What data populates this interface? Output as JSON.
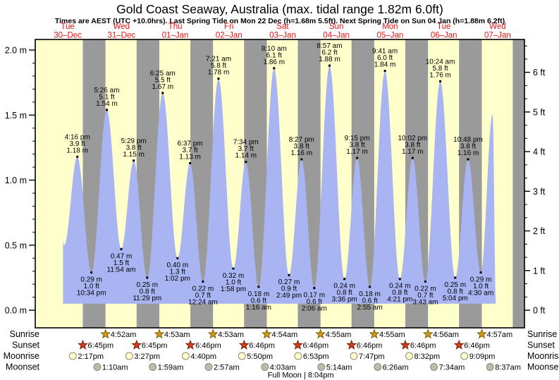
{
  "title": "Gold Coast Seaway, Australia (max. tidal range 1.82m 6.0ft)",
  "subtitle": "Times are AEST (UTC +10.0hrs). Last Spring Tide on Mon 22 Dec (h=1.68m 5.5ft). Next Spring Tide on Sun 04 Jan (h=1.88m 6.2ft)",
  "days": [
    {
      "name": "Tue",
      "date": "30–Dec"
    },
    {
      "name": "Wed",
      "date": "31–Dec"
    },
    {
      "name": "Thu",
      "date": "01–Jan"
    },
    {
      "name": "Fri",
      "date": "02–Jan"
    },
    {
      "name": "Sat",
      "date": "03–Jan"
    },
    {
      "name": "Sun",
      "date": "04–Jan"
    },
    {
      "name": "Mon",
      "date": "05–Jan"
    },
    {
      "name": "Tue",
      "date": "06–Jan"
    },
    {
      "name": "Wed",
      "date": "07–Jan"
    }
  ],
  "axes": {
    "left_ticks": [
      {
        "m": 0.0,
        "label": "0.0 m"
      },
      {
        "m": 0.5,
        "label": "0.5 m"
      },
      {
        "m": 1.0,
        "label": "1.0 m"
      },
      {
        "m": 1.5,
        "label": "1.5 m"
      },
      {
        "m": 2.0,
        "label": "2.0 m"
      }
    ],
    "right_ticks": [
      {
        "ft": 0,
        "label": "0 ft"
      },
      {
        "ft": 1,
        "label": "1 ft"
      },
      {
        "ft": 2,
        "label": "2 ft"
      },
      {
        "ft": 3,
        "label": "3 ft"
      },
      {
        "ft": 4,
        "label": "4 ft"
      },
      {
        "ft": 5,
        "label": "5 ft"
      },
      {
        "ft": 6,
        "label": "6 ft"
      }
    ]
  },
  "chart_data": {
    "type": "area",
    "title": "Tide height, Gold Coast Seaway",
    "x_unit": "hours since Tue 30-Dec 00:00 AEST",
    "y_unit": "m",
    "x_range": [
      0,
      216
    ],
    "ylim": [
      -0.12,
      2.08
    ],
    "grid": false,
    "night_bands": [
      [
        18.75,
        28.87
      ],
      [
        42.75,
        52.88
      ],
      [
        66.77,
        76.88
      ],
      [
        90.77,
        100.9
      ],
      [
        114.77,
        124.92
      ],
      [
        138.77,
        148.92
      ],
      [
        162.77,
        172.93
      ],
      [
        186.77,
        196.95
      ],
      [
        210.77,
        216
      ]
    ],
    "tide_points": [
      {
        "t": 9.9,
        "h": 0.53
      },
      {
        "t": 10.4,
        "h": 0.5
      },
      {
        "t": 16.27,
        "h": 1.18,
        "kind": "high",
        "time": "4:16 pm",
        "ft": "3.9 ft",
        "m": "1.18 m"
      },
      {
        "t": 22.57,
        "h": 0.29,
        "kind": "low",
        "time": "10:34 pm",
        "ft": "1.0 ft",
        "m": "0.29 m"
      },
      {
        "t": 29.43,
        "h": 1.54,
        "kind": "high",
        "time": "5:26 am",
        "ft": "5.1 ft",
        "m": "1.54 m"
      },
      {
        "t": 35.9,
        "h": 0.47,
        "kind": "low",
        "time": "11:54 am",
        "ft": "1.5 ft",
        "m": "0.47 m"
      },
      {
        "t": 41.48,
        "h": 1.15,
        "kind": "high",
        "time": "5:29 pm",
        "ft": "3.8 ft",
        "m": "1.15 m"
      },
      {
        "t": 47.48,
        "h": 0.25,
        "kind": "low",
        "time": "11:29 pm",
        "ft": "0.8 ft",
        "m": "0.25 m"
      },
      {
        "t": 54.42,
        "h": 1.67,
        "kind": "high",
        "time": "6:25 am",
        "ft": "5.5 ft",
        "m": "1.67 m"
      },
      {
        "t": 61.03,
        "h": 0.4,
        "kind": "low",
        "time": "1:02 pm",
        "ft": "1.3 ft",
        "m": "0.40 m"
      },
      {
        "t": 66.62,
        "h": 1.13,
        "kind": "high",
        "time": "6:37 pm",
        "ft": "3.7 ft",
        "m": "1.13 m"
      },
      {
        "t": 72.4,
        "h": 0.22,
        "kind": "low",
        "time": "12:24 am",
        "ft": "0.7 ft",
        "m": "0.22 m"
      },
      {
        "t": 79.35,
        "h": 1.78,
        "kind": "high",
        "time": "7:21 am",
        "ft": "5.8 ft",
        "m": "1.78 m"
      },
      {
        "t": 85.97,
        "h": 0.32,
        "kind": "low",
        "time": "1:58 pm",
        "ft": "1.0 ft",
        "m": "0.32 m"
      },
      {
        "t": 91.57,
        "h": 1.14,
        "kind": "high",
        "time": "7:34 pm",
        "ft": "3.7 ft",
        "m": "1.14 m"
      },
      {
        "t": 97.27,
        "h": 0.18,
        "kind": "low",
        "time": "1:16 am",
        "ft": "0.6 ft",
        "m": "0.18 m"
      },
      {
        "t": 104.17,
        "h": 1.86,
        "kind": "high",
        "time": "8:10 am",
        "ft": "6.1 ft",
        "m": "1.86 m"
      },
      {
        "t": 110.82,
        "h": 0.27,
        "kind": "low",
        "time": "2:49 pm",
        "ft": "0.9 ft",
        "m": "0.27 m"
      },
      {
        "t": 116.45,
        "h": 1.16,
        "kind": "high",
        "time": "8:27 pm",
        "ft": "3.8 ft",
        "m": "1.16 m"
      },
      {
        "t": 122.1,
        "h": 0.17,
        "kind": "low",
        "time": "2:06 am",
        "ft": "0.6 ft",
        "m": "0.17 m"
      },
      {
        "t": 128.95,
        "h": 1.88,
        "kind": "high",
        "time": "8:57 am",
        "ft": "6.2 ft",
        "m": "1.88 m"
      },
      {
        "t": 135.6,
        "h": 0.24,
        "kind": "low",
        "time": "3:36 pm",
        "ft": "0.8 ft",
        "m": "0.24 m"
      },
      {
        "t": 141.25,
        "h": 1.17,
        "kind": "high",
        "time": "9:15 pm",
        "ft": "3.8 ft",
        "m": "1.17 m"
      },
      {
        "t": 146.92,
        "h": 0.18,
        "kind": "low",
        "time": "2:55 am",
        "ft": "0.6 ft",
        "m": "0.18 m"
      },
      {
        "t": 153.68,
        "h": 1.84,
        "kind": "high",
        "time": "9:41 am",
        "ft": "6.0 ft",
        "m": "1.84 m"
      },
      {
        "t": 160.35,
        "h": 0.24,
        "kind": "low",
        "time": "4:21 pm",
        "ft": "0.8 ft",
        "m": "0.24 m"
      },
      {
        "t": 166.03,
        "h": 1.17,
        "kind": "high",
        "time": "10:02 pm",
        "ft": "3.8 ft",
        "m": "1.17 m"
      },
      {
        "t": 171.72,
        "h": 0.22,
        "kind": "low",
        "time": "3:43 am",
        "ft": "0.7 ft",
        "m": "0.22 m"
      },
      {
        "t": 178.4,
        "h": 1.76,
        "kind": "high",
        "time": "10:24 am",
        "ft": "5.8 ft",
        "m": "1.76 m"
      },
      {
        "t": 185.07,
        "h": 0.25,
        "kind": "low",
        "time": "5:04 pm",
        "ft": "0.8 ft",
        "m": "0.25 m"
      },
      {
        "t": 190.8,
        "h": 1.16,
        "kind": "high",
        "time": "10:48 pm",
        "ft": "3.8 ft",
        "m": "1.16 m"
      },
      {
        "t": 196.5,
        "h": 0.29,
        "kind": "low",
        "time": "4:30 am",
        "ft": "1.0 ft",
        "m": "0.29 m"
      },
      {
        "t": 201.8,
        "h": 1.51
      },
      {
        "t": 203.2,
        "h": 0.05
      }
    ]
  },
  "astronomy": {
    "rows": [
      {
        "label": "Sunrise",
        "icon": "sunrise-star",
        "events": [
          {
            "time": "4:52am",
            "t": 28.87
          },
          {
            "time": "4:53am",
            "t": 52.88
          },
          {
            "time": "4:53am",
            "t": 76.88
          },
          {
            "time": "4:54am",
            "t": 100.9
          },
          {
            "time": "4:55am",
            "t": 124.92
          },
          {
            "time": "4:55am",
            "t": 148.92
          },
          {
            "time": "4:56am",
            "t": 172.93
          },
          {
            "time": "4:57am",
            "t": 196.95
          }
        ]
      },
      {
        "label": "Sunset",
        "icon": "sunset-star",
        "events": [
          {
            "time": "6:45pm",
            "t": 18.75
          },
          {
            "time": "6:45pm",
            "t": 42.75
          },
          {
            "time": "6:46pm",
            "t": 66.77
          },
          {
            "time": "6:46pm",
            "t": 90.77
          },
          {
            "time": "6:46pm",
            "t": 114.77
          },
          {
            "time": "6:46pm",
            "t": 138.77
          },
          {
            "time": "6:46pm",
            "t": 162.77
          },
          {
            "time": "6:46pm",
            "t": 186.77
          }
        ]
      },
      {
        "label": "Moonrise",
        "icon": "moonrise-circle",
        "events": [
          {
            "time": "2:17pm",
            "t": 14.28
          },
          {
            "time": "3:27pm",
            "t": 39.45
          },
          {
            "time": "4:40pm",
            "t": 64.67
          },
          {
            "time": "5:50pm",
            "t": 89.83
          },
          {
            "time": "6:53pm",
            "t": 114.88
          },
          {
            "time": "7:47pm",
            "t": 139.78
          },
          {
            "time": "8:32pm",
            "t": 164.53
          },
          {
            "time": "9:09pm",
            "t": 189.15
          }
        ]
      },
      {
        "label": "Moonset",
        "icon": "moonset-circle",
        "events": [
          {
            "time": "1:10am",
            "t": 25.17
          },
          {
            "time": "1:59am",
            "t": 49.98
          },
          {
            "time": "2:57am",
            "t": 74.95
          },
          {
            "time": "4:03am",
            "t": 100.05
          },
          {
            "time": "5:14am",
            "t": 125.23
          },
          {
            "time": "6:26am",
            "t": 150.43
          },
          {
            "time": "7:34am",
            "t": 175.57
          },
          {
            "time": "8:37am",
            "t": 200.62
          }
        ]
      }
    ],
    "full_moon": {
      "text": "Full Moon | 8:04pm",
      "t": 116.07
    }
  },
  "colors": {
    "daylight": "#ffffcc",
    "night": "#9a9a9a",
    "tide": "#a9b4f2",
    "day_label": "#ee1111",
    "sunrise_star": "#d4971e",
    "sunrise_star_edge": "#7d6000",
    "sunset_star": "#cf4020",
    "sunset_star_edge": "#7a1e00",
    "moonrise_fill": "#ffffcc",
    "moonset_fill": "#bcbcab",
    "moon_edge": "#8c8c7a"
  }
}
